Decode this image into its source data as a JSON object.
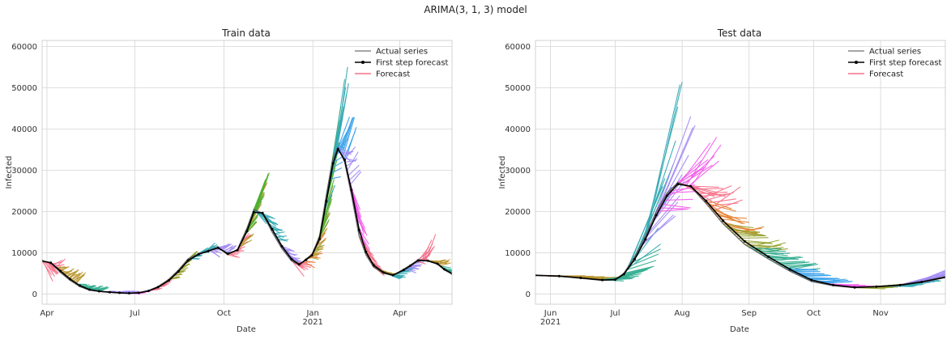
{
  "figure": {
    "suptitle": "ARIMA(3, 1, 3) model"
  },
  "legend": {
    "actual": "Actual series",
    "first_step": "First step forecast",
    "forecast": "Forecast"
  },
  "forecast_palette": [
    "#f77189",
    "#e68332",
    "#bb9832",
    "#97a431",
    "#50b131",
    "#34ae91",
    "#37abb5",
    "#3ba3ec",
    "#a48cf4",
    "#f45deb"
  ],
  "chart_data": [
    {
      "type": "line",
      "title": "Train data",
      "xlabel": "Date",
      "ylabel": "Infected",
      "x_range": [
        "2020-03-27",
        "2021-05-25"
      ],
      "ylim": [
        -2500,
        61500
      ],
      "yticks": [
        0,
        10000,
        20000,
        30000,
        40000,
        50000,
        60000
      ],
      "xticks": [
        {
          "date": "2020-04-01",
          "label": "Apr",
          "sub": ""
        },
        {
          "date": "2020-07-01",
          "label": "Jul",
          "sub": ""
        },
        {
          "date": "2020-10-01",
          "label": "Oct",
          "sub": ""
        },
        {
          "date": "2021-01-01",
          "label": "Jan",
          "sub": "2021"
        },
        {
          "date": "2021-04-01",
          "label": "Apr",
          "sub": ""
        }
      ],
      "grid": true,
      "legend_position": "top-right",
      "actual_series": [
        [
          "2020-03-27",
          8000
        ],
        [
          "2020-04-05",
          7500
        ],
        [
          "2020-04-15",
          5200
        ],
        [
          "2020-04-25",
          3300
        ],
        [
          "2020-05-05",
          1800
        ],
        [
          "2020-05-15",
          900
        ],
        [
          "2020-05-25",
          600
        ],
        [
          "2020-06-05",
          400
        ],
        [
          "2020-06-15",
          250
        ],
        [
          "2020-06-25",
          150
        ],
        [
          "2020-07-05",
          300
        ],
        [
          "2020-07-15",
          800
        ],
        [
          "2020-07-25",
          1800
        ],
        [
          "2020-08-05",
          3500
        ],
        [
          "2020-08-15",
          5800
        ],
        [
          "2020-08-25",
          8500
        ],
        [
          "2020-09-05",
          9800
        ],
        [
          "2020-09-15",
          10500
        ],
        [
          "2020-09-25",
          11300
        ],
        [
          "2020-10-05",
          9500
        ],
        [
          "2020-10-15",
          10800
        ],
        [
          "2020-10-25",
          16000
        ],
        [
          "2020-11-01",
          20500
        ],
        [
          "2020-11-10",
          19500
        ],
        [
          "2020-11-20",
          15000
        ],
        [
          "2020-11-30",
          11000
        ],
        [
          "2020-12-10",
          8000
        ],
        [
          "2020-12-18",
          7000
        ],
        [
          "2020-12-25",
          8500
        ],
        [
          "2020-12-31",
          9500
        ],
        [
          "2021-01-08",
          14000
        ],
        [
          "2021-01-15",
          24000
        ],
        [
          "2021-01-22",
          33000
        ],
        [
          "2021-01-27",
          35500
        ],
        [
          "2021-02-03",
          32000
        ],
        [
          "2021-02-10",
          24000
        ],
        [
          "2021-02-18",
          14000
        ],
        [
          "2021-02-25",
          9500
        ],
        [
          "2021-03-05",
          6500
        ],
        [
          "2021-03-15",
          5000
        ],
        [
          "2021-03-25",
          4500
        ],
        [
          "2021-04-05",
          6000
        ],
        [
          "2021-04-12",
          7000
        ],
        [
          "2021-04-20",
          8300
        ],
        [
          "2021-04-30",
          8000
        ],
        [
          "2021-05-10",
          7200
        ],
        [
          "2021-05-17",
          5800
        ],
        [
          "2021-05-25",
          4800
        ]
      ],
      "forecast_groups": [
        {
          "start": "2020-03-27",
          "end": "2020-04-10",
          "delta": [
            -6000,
            3000
          ],
          "len": 10,
          "color": 0
        },
        {
          "start": "2020-04-10",
          "end": "2020-05-01",
          "delta": [
            -1000,
            3500
          ],
          "len": 10,
          "color": 2
        },
        {
          "start": "2020-05-01",
          "end": "2020-05-25",
          "delta": [
            -500,
            1500
          ],
          "len": 10,
          "color": 5
        },
        {
          "start": "2020-05-25",
          "end": "2020-06-25",
          "delta": [
            -300,
            700
          ],
          "len": 10,
          "color": 8
        },
        {
          "start": "2020-06-25",
          "end": "2020-07-15",
          "delta": [
            -200,
            800
          ],
          "len": 10,
          "color": 9
        },
        {
          "start": "2020-07-15",
          "end": "2020-08-05",
          "delta": [
            -300,
            2000
          ],
          "len": 10,
          "color": 0
        },
        {
          "start": "2020-08-05",
          "end": "2020-08-25",
          "delta": [
            -500,
            2500
          ],
          "len": 10,
          "color": 3
        },
        {
          "start": "2020-08-25",
          "end": "2020-09-15",
          "delta": [
            -1000,
            2500
          ],
          "len": 10,
          "color": 6
        },
        {
          "start": "2020-09-15",
          "end": "2020-10-05",
          "delta": [
            -2500,
            3000
          ],
          "len": 10,
          "color": 8
        },
        {
          "start": "2020-10-05",
          "end": "2020-10-20",
          "delta": [
            -2000,
            4000
          ],
          "len": 10,
          "color": 0
        },
        {
          "start": "2020-10-15",
          "end": "2020-11-01",
          "delta": [
            1000,
            10000
          ],
          "len": 14,
          "color": 2
        },
        {
          "start": "2020-10-20",
          "end": "2020-11-03",
          "delta": [
            3000,
            10000
          ],
          "len": 14,
          "color": 4
        },
        {
          "start": "2020-11-01",
          "end": "2020-11-25",
          "delta": [
            -4000,
            1000
          ],
          "len": 12,
          "color": 6
        },
        {
          "start": "2020-11-25",
          "end": "2020-12-10",
          "delta": [
            -3500,
            1500
          ],
          "len": 12,
          "color": 8
        },
        {
          "start": "2020-12-10",
          "end": "2020-12-22",
          "delta": [
            -4000,
            3000
          ],
          "len": 12,
          "color": 0
        },
        {
          "start": "2020-12-22",
          "end": "2021-01-05",
          "delta": [
            -3000,
            6500
          ],
          "len": 12,
          "color": 1
        },
        {
          "start": "2020-12-28",
          "end": "2021-01-12",
          "delta": [
            -2500,
            10000
          ],
          "len": 10,
          "color": 3
        },
        {
          "start": "2021-01-05",
          "end": "2021-01-18",
          "delta": [
            4000,
            18000
          ],
          "len": 12,
          "color": 4
        },
        {
          "start": "2021-01-12",
          "end": "2021-01-26",
          "delta": [
            6000,
            22000
          ],
          "len": 12,
          "color": 6
        },
        {
          "start": "2021-01-18",
          "end": "2021-02-03",
          "delta": [
            -1500,
            11000
          ],
          "len": 12,
          "color": 7
        },
        {
          "start": "2021-01-27",
          "end": "2021-02-08",
          "delta": [
            -4500,
            7000
          ],
          "len": 12,
          "color": 8
        },
        {
          "start": "2021-02-03",
          "end": "2021-02-18",
          "delta": [
            -12000,
            -3000
          ],
          "len": 12,
          "color": 9
        },
        {
          "start": "2021-02-18",
          "end": "2021-03-05",
          "delta": [
            -5000,
            -800
          ],
          "len": 12,
          "color": 0
        },
        {
          "start": "2021-03-05",
          "end": "2021-03-20",
          "delta": [
            -1800,
            500
          ],
          "len": 12,
          "color": 2
        },
        {
          "start": "2021-03-20",
          "end": "2021-04-05",
          "delta": [
            -1200,
            1200
          ],
          "len": 12,
          "color": 6
        },
        {
          "start": "2021-04-05",
          "end": "2021-04-18",
          "delta": [
            -1500,
            2500
          ],
          "len": 12,
          "color": 8
        },
        {
          "start": "2021-04-18",
          "end": "2021-04-28",
          "delta": [
            -1200,
            7000
          ],
          "len": 10,
          "color": 0
        },
        {
          "start": "2021-04-28",
          "end": "2021-05-12",
          "delta": [
            -1000,
            1500
          ],
          "len": 12,
          "color": 2
        },
        {
          "start": "2021-05-12",
          "end": "2021-05-25",
          "delta": [
            -1200,
            500
          ],
          "len": 12,
          "color": 5
        }
      ]
    },
    {
      "type": "line",
      "title": "Test data",
      "xlabel": "Date",
      "ylabel": "Infected",
      "x_range": [
        "2021-05-25",
        "2021-12-01"
      ],
      "ylim": [
        -2500,
        61500
      ],
      "yticks": [
        0,
        10000,
        20000,
        30000,
        40000,
        50000,
        60000
      ],
      "xticks": [
        {
          "date": "2021-06-01",
          "label": "Jun",
          "sub": "2021"
        },
        {
          "date": "2021-07-01",
          "label": "Jul",
          "sub": ""
        },
        {
          "date": "2021-08-01",
          "label": "Aug",
          "sub": ""
        },
        {
          "date": "2021-09-01",
          "label": "Sep",
          "sub": ""
        },
        {
          "date": "2021-10-01",
          "label": "Oct",
          "sub": ""
        },
        {
          "date": "2021-11-01",
          "label": "Nov",
          "sub": ""
        }
      ],
      "grid": true,
      "legend_position": "top-right",
      "actual_series": [
        [
          "2021-05-25",
          4500
        ],
        [
          "2021-06-05",
          4300
        ],
        [
          "2021-06-15",
          3800
        ],
        [
          "2021-06-25",
          3300
        ],
        [
          "2021-07-01",
          3500
        ],
        [
          "2021-07-05",
          5000
        ],
        [
          "2021-07-10",
          9000
        ],
        [
          "2021-07-15",
          14000
        ],
        [
          "2021-07-20",
          20000
        ],
        [
          "2021-07-25",
          24500
        ],
        [
          "2021-07-30",
          27000
        ],
        [
          "2021-08-05",
          26000
        ],
        [
          "2021-08-12",
          22000
        ],
        [
          "2021-08-20",
          17000
        ],
        [
          "2021-08-30",
          12000
        ],
        [
          "2021-09-10",
          8500
        ],
        [
          "2021-09-20",
          5500
        ],
        [
          "2021-09-30",
          3000
        ],
        [
          "2021-10-10",
          2000
        ],
        [
          "2021-10-20",
          1500
        ],
        [
          "2021-10-30",
          1800
        ],
        [
          "2021-11-10",
          2200
        ],
        [
          "2021-11-20",
          3000
        ],
        [
          "2021-12-01",
          4200
        ]
      ],
      "forecast_groups": [
        {
          "start": "2021-05-25",
          "end": "2021-06-20",
          "delta": [
            -500,
            500
          ],
          "len": 14,
          "color": 2
        },
        {
          "start": "2021-06-20",
          "end": "2021-07-08",
          "delta": [
            -800,
            3500
          ],
          "len": 14,
          "color": 5
        },
        {
          "start": "2021-07-05",
          "end": "2021-07-16",
          "delta": [
            2000,
            43000
          ],
          "len": 16,
          "color": 6
        },
        {
          "start": "2021-07-12",
          "end": "2021-07-22",
          "delta": [
            3000,
            26000
          ],
          "len": 16,
          "color": 8
        },
        {
          "start": "2021-07-20",
          "end": "2021-08-05",
          "delta": [
            -3000,
            13000
          ],
          "len": 14,
          "color": 9
        },
        {
          "start": "2021-08-01",
          "end": "2021-08-15",
          "delta": [
            -5000,
            6000
          ],
          "len": 14,
          "color": 0
        },
        {
          "start": "2021-08-10",
          "end": "2021-08-25",
          "delta": [
            -5000,
            2000
          ],
          "len": 14,
          "color": 1
        },
        {
          "start": "2021-08-20",
          "end": "2021-09-05",
          "delta": [
            -3000,
            2500
          ],
          "len": 14,
          "color": 3
        },
        {
          "start": "2021-09-01",
          "end": "2021-09-20",
          "delta": [
            -1500,
            2000
          ],
          "len": 14,
          "color": 5
        },
        {
          "start": "2021-09-18",
          "end": "2021-10-05",
          "delta": [
            -800,
            1000
          ],
          "len": 14,
          "color": 7
        },
        {
          "start": "2021-10-05",
          "end": "2021-10-25",
          "delta": [
            -400,
            600
          ],
          "len": 14,
          "color": 9
        },
        {
          "start": "2021-10-20",
          "end": "2021-11-05",
          "delta": [
            -300,
            900
          ],
          "len": 14,
          "color": 3
        },
        {
          "start": "2021-11-01",
          "end": "2021-11-15",
          "delta": [
            -200,
            1000
          ],
          "len": 14,
          "color": 6
        },
        {
          "start": "2021-11-10",
          "end": "2021-12-01",
          "delta": [
            500,
            5000
          ],
          "len": 14,
          "color": 8
        }
      ]
    }
  ]
}
